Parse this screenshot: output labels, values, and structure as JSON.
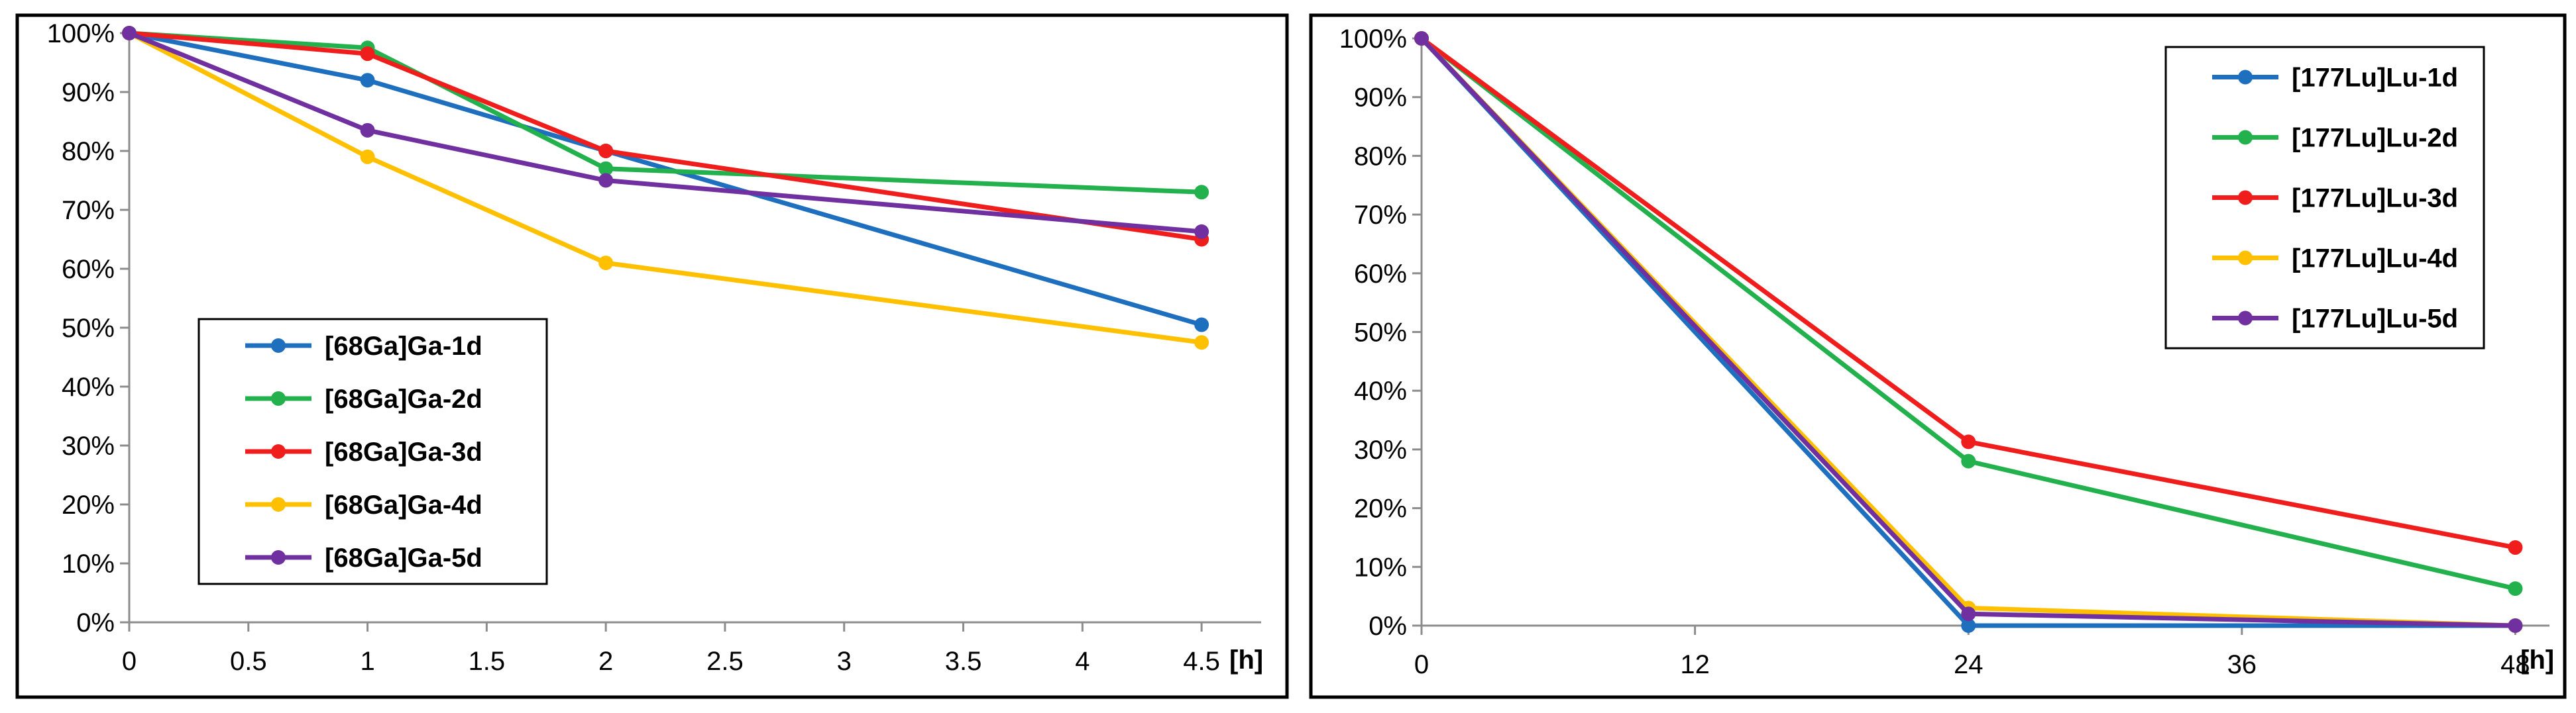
{
  "chart_data": [
    {
      "type": "line",
      "x": [
        0,
        1,
        2,
        4.5
      ],
      "xticks": [
        "0",
        "0.5",
        "1",
        "1.5",
        "2",
        "2.5",
        "3",
        "3.5",
        "4",
        "4.5"
      ],
      "xlim": [
        0,
        4.75
      ],
      "ylim": [
        0,
        100
      ],
      "yticks": [
        "0%",
        "10%",
        "20%",
        "30%",
        "40%",
        "50%",
        "60%",
        "70%",
        "80%",
        "90%",
        "100%"
      ],
      "xlabel": "[h]",
      "ylabel": "",
      "legend_position": "lower-left",
      "series": [
        {
          "name": "[68Ga]Ga-1d",
          "color": "#1f6fbf",
          "values": [
            100,
            92,
            80,
            50.5
          ]
        },
        {
          "name": "[68Ga]Ga-2d",
          "color": "#22b14c",
          "values": [
            100,
            97.5,
            77,
            73
          ]
        },
        {
          "name": "[68Ga]Ga-3d",
          "color": "#f01d1d",
          "values": [
            100,
            96.5,
            80,
            65
          ]
        },
        {
          "name": "[68Ga]Ga-4d",
          "color": "#ffc000",
          "values": [
            100,
            79,
            61,
            47.5
          ]
        },
        {
          "name": "[68Ga]Ga-5d",
          "color": "#7030a0",
          "values": [
            100,
            83.5,
            75,
            66.3
          ]
        }
      ]
    },
    {
      "type": "line",
      "x": [
        0,
        24,
        48
      ],
      "xticks": [
        "0",
        "12",
        "24",
        "36",
        "48"
      ],
      "xlim": [
        0,
        49.5
      ],
      "ylim": [
        0,
        100
      ],
      "yticks": [
        "0%",
        "10%",
        "20%",
        "30%",
        "40%",
        "50%",
        "60%",
        "70%",
        "80%",
        "90%",
        "100%"
      ],
      "xlabel": "[h]",
      "ylabel": "",
      "legend_position": "top-right",
      "series": [
        {
          "name": "[177Lu]Lu-1d",
          "color": "#1f6fbf",
          "values": [
            100,
            0,
            0
          ]
        },
        {
          "name": "[177Lu]Lu-2d",
          "color": "#22b14c",
          "values": [
            100,
            28,
            6.3
          ]
        },
        {
          "name": "[177Lu]Lu-3d",
          "color": "#f01d1d",
          "values": [
            100,
            31.3,
            13.3
          ]
        },
        {
          "name": "[177Lu]Lu-4d",
          "color": "#ffc000",
          "values": [
            100,
            3,
            0
          ]
        },
        {
          "name": "[177Lu]Lu-5d",
          "color": "#7030a0",
          "values": [
            100,
            2,
            0
          ]
        }
      ]
    }
  ]
}
